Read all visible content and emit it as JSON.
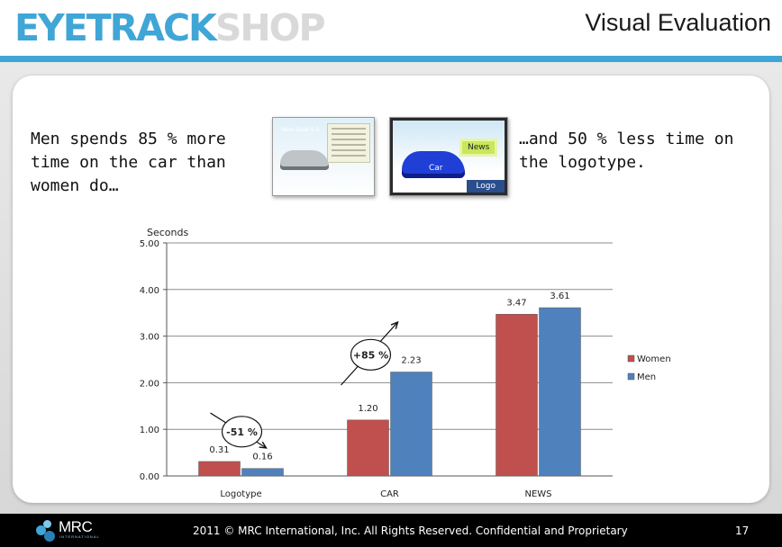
{
  "header": {
    "logo_part1": "EYETRACK",
    "logo_part2": "SHOP",
    "title": "Visual Evaluation"
  },
  "intro": {
    "left": "Men spends 85 % more time on the car than women do…",
    "right": "…and 50 % less time on the logotype."
  },
  "thumbnails": {
    "thumb1_heading": "New Saab 9-5",
    "thumb2_labels": [
      "News",
      "Car",
      "Logo"
    ]
  },
  "chart_data": {
    "type": "bar",
    "ylabel": "Seconds",
    "categories": [
      "Logotype",
      "CAR",
      "NEWS"
    ],
    "series": [
      {
        "name": "Women",
        "values": [
          0.31,
          1.2,
          3.47
        ],
        "color": "#c0504d"
      },
      {
        "name": "Men",
        "values": [
          0.16,
          2.23,
          3.61
        ],
        "color": "#4f81bd"
      }
    ],
    "value_labels": {
      "Women": [
        "0.31",
        "1.20",
        "3.47"
      ],
      "Men": [
        "0.16",
        "2.23",
        "3.61"
      ]
    },
    "ylim": [
      0,
      5
    ],
    "y_ticks": [
      "0.00",
      "1.00",
      "2.00",
      "3.00",
      "4.00",
      "5.00"
    ],
    "grid": true,
    "legend_position": "right",
    "annotations": [
      {
        "category": "Logotype",
        "text": "-51 %",
        "direction": "down"
      },
      {
        "category": "CAR",
        "text": "+85 %",
        "direction": "up"
      }
    ]
  },
  "footer": {
    "brand": "MRC",
    "brand_sub": "INTERNATIONAL",
    "copyright": "2011 © MRC International, Inc. All Rights Reserved. Confidential and Proprietary",
    "page": "17"
  }
}
